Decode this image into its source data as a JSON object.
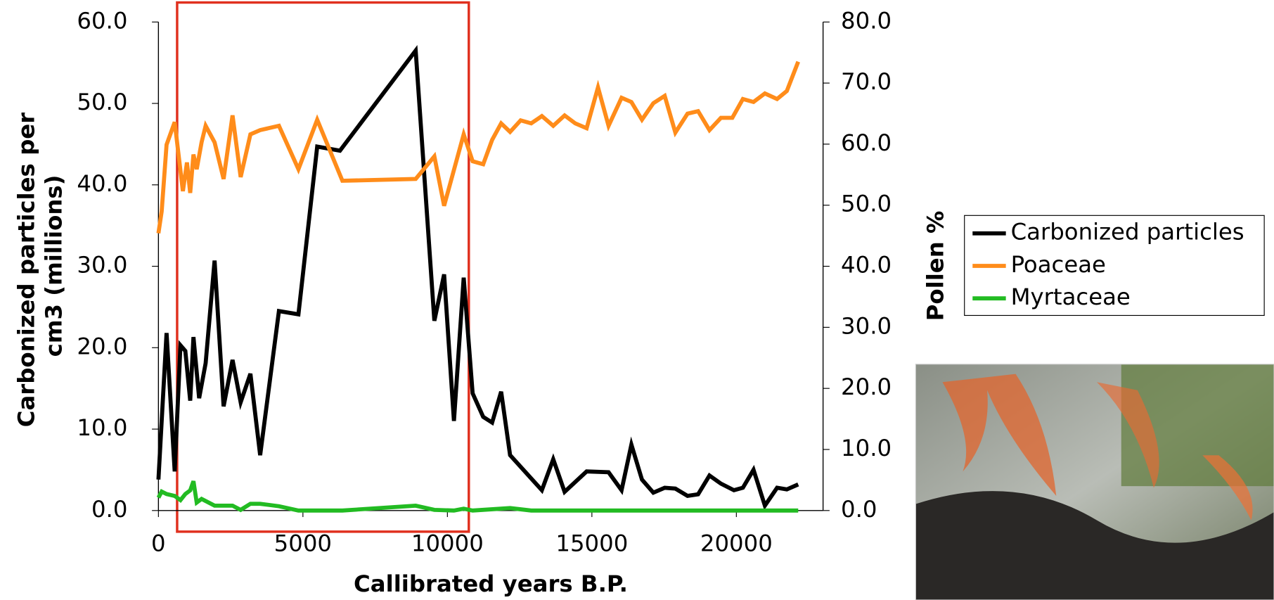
{
  "chart_data": {
    "type": "line",
    "x_label": "Callibrated years B.P.",
    "y_label": "Carbonized particles per cm3 (millions)",
    "y2_label": "Pollen %",
    "xlim": [
      0,
      23000
    ],
    "xticks": [
      0,
      5000,
      10000,
      15000,
      20000
    ],
    "ylim": [
      0,
      60
    ],
    "yticks": [
      {
        "value": 0,
        "label": "0.0"
      },
      {
        "value": 10,
        "label": "10.0"
      },
      {
        "value": 20,
        "label": "20.0"
      },
      {
        "value": 30,
        "label": "30.0"
      },
      {
        "value": 40,
        "label": "40.0"
      },
      {
        "value": 50,
        "label": "50.0"
      },
      {
        "value": 60,
        "label": "60.0"
      }
    ],
    "y2lim": [
      0,
      80
    ],
    "y2ticks": [
      {
        "value": 0,
        "label": "0.0"
      },
      {
        "value": 10,
        "label": "10.0"
      },
      {
        "value": 20,
        "label": "20.0"
      },
      {
        "value": 30,
        "label": "30.0"
      },
      {
        "value": 40,
        "label": "40.0"
      },
      {
        "value": 50,
        "label": "50.0"
      },
      {
        "value": 60,
        "label": "60.0"
      },
      {
        "value": 70,
        "label": "70.0"
      },
      {
        "value": 80,
        "label": "80.0"
      }
    ],
    "series": [
      {
        "name": "Carbonized particles",
        "color": "#000000",
        "x": [
          0,
          282,
          563,
          761,
          930,
          1099,
          1211,
          1408,
          1634,
          1944,
          2254,
          2563,
          2845,
          3183,
          3521,
          4169,
          4845,
          5493,
          6282,
          8901,
          9549,
          9887,
          10225,
          10563,
          10873,
          11239,
          11549,
          11859,
          12169,
          13268,
          13662,
          14056,
          14817,
          15577,
          16028,
          16366,
          16732,
          17127,
          17521,
          17887,
          18310,
          18676,
          19070,
          19465,
          19915,
          20225,
          20592,
          20986,
          21408,
          21746,
          22141
        ],
        "values": [
          3.8,
          21.8,
          4.8,
          20.3,
          19.6,
          13.5,
          21.3,
          13.8,
          18.1,
          30.7,
          12.8,
          18.5,
          13.3,
          16.8,
          6.8,
          24.5,
          24.1,
          44.7,
          44.2,
          56.5,
          23.3,
          29.0,
          11.0,
          28.6,
          14.4,
          11.5,
          10.8,
          14.6,
          6.8,
          2.5,
          6.3,
          2.3,
          4.8,
          4.7,
          2.5,
          8.1,
          3.8,
          2.2,
          2.8,
          2.7,
          1.8,
          2.0,
          4.3,
          3.3,
          2.5,
          2.8,
          5.0,
          0.6,
          2.8,
          2.6,
          3.2
        ]
      },
      {
        "name": "Poaceae",
        "color": "#ff8c1a",
        "axis": "y2",
        "x": [
          0,
          113,
          282,
          563,
          845,
          986,
          1099,
          1211,
          1324,
          1493,
          1634,
          1944,
          2254,
          2563,
          2845,
          3183,
          3521,
          4169,
          4845,
          5493,
          6366,
          8901,
          9549,
          9887,
          10563,
          10873,
          11239,
          11549,
          11859,
          12169,
          12535,
          12901,
          13268,
          13662,
          14056,
          14423,
          14817,
          15211,
          15577,
          16028,
          16366,
          16732,
          17127,
          17521,
          17887,
          18310,
          18676,
          19070,
          19465,
          19859,
          20225,
          20592,
          20986,
          21408,
          21746,
          22141
        ],
        "values": [
          45.4,
          49.0,
          59.9,
          63.6,
          52.3,
          57.0,
          52.0,
          58.3,
          55.9,
          60.3,
          63.0,
          60.3,
          54.3,
          64.7,
          54.6,
          61.6,
          62.3,
          63.0,
          55.9,
          64.0,
          54.0,
          54.3,
          58.0,
          49.9,
          61.6,
          57.2,
          56.7,
          60.7,
          63.4,
          62.0,
          63.9,
          63.4,
          64.6,
          63.0,
          64.7,
          63.4,
          62.6,
          69.3,
          63.0,
          67.6,
          66.9,
          64.0,
          66.7,
          67.9,
          61.9,
          65.0,
          65.4,
          62.3,
          64.3,
          64.3,
          67.4,
          66.9,
          68.3,
          67.4,
          68.7,
          73.5
        ]
      },
      {
        "name": "Myrtaceae",
        "color": "#22bb22",
        "axis": "y2",
        "x": [
          0,
          113,
          282,
          563,
          761,
          930,
          1099,
          1211,
          1324,
          1493,
          1944,
          2563,
          2845,
          3183,
          3521,
          4169,
          4845,
          6366,
          8901,
          9549,
          10225,
          10563,
          10873,
          12169,
          12901,
          22141
        ],
        "values": [
          2.1,
          3.1,
          2.7,
          2.4,
          1.7,
          2.7,
          3.3,
          4.8,
          1.3,
          1.9,
          0.8,
          0.8,
          0.1,
          1.1,
          1.1,
          0.7,
          0,
          0,
          0.8,
          0.1,
          0,
          0.3,
          0,
          0.4,
          0,
          0
        ]
      }
    ]
  }
}
